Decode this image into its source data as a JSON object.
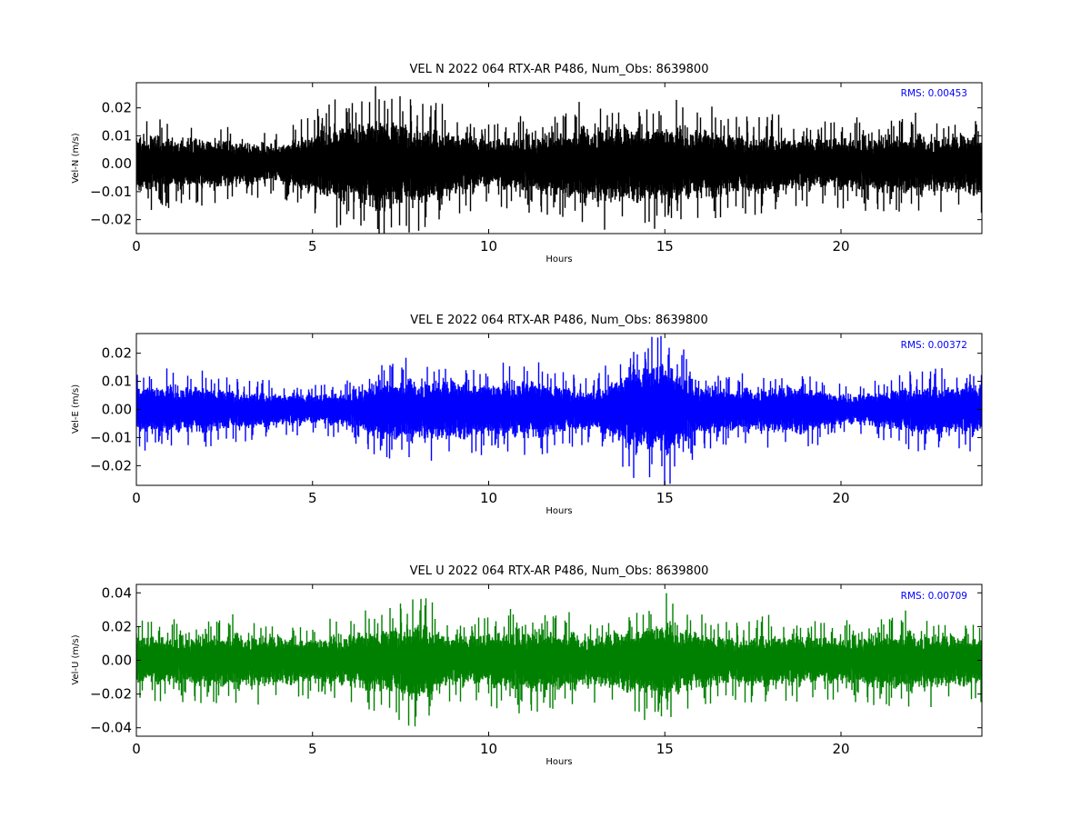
{
  "chart_data": [
    {
      "type": "line",
      "title": "VEL N 2022 064 RTX-AR  P486, Num_Obs: 8639800",
      "xlabel": "Hours",
      "ylabel": "Vel-N (m/s)",
      "xlim": [
        0,
        24
      ],
      "ylim": [
        -0.025,
        0.029
      ],
      "x_ticks": [
        0,
        5,
        10,
        15,
        20
      ],
      "y_ticks": [
        -0.02,
        -0.01,
        0.0,
        0.01,
        0.02
      ],
      "y_tick_labels": [
        "−0.02",
        "−0.01",
        "0.00",
        "0.01",
        "0.02"
      ],
      "color": "#000000",
      "annotation": "RMS:  0.00453",
      "annotation_color": "#0000ff",
      "series": [
        {
          "x": [
            0,
            1,
            2,
            3,
            4,
            5,
            6,
            7,
            8,
            9,
            10,
            11,
            12,
            13,
            14,
            15,
            16,
            17,
            18,
            19,
            20,
            21,
            22,
            23,
            24
          ],
          "envelope": [
            0.015,
            0.014,
            0.013,
            0.012,
            0.01,
            0.017,
            0.022,
            0.025,
            0.021,
            0.018,
            0.013,
            0.015,
            0.017,
            0.021,
            0.02,
            0.021,
            0.019,
            0.016,
            0.016,
            0.014,
            0.014,
            0.015,
            0.016,
            0.015,
            0.017
          ]
        }
      ]
    },
    {
      "type": "line",
      "title": "VEL E 2022 064 RTX-AR  P486, Num_Obs: 8639800",
      "xlabel": "Hours",
      "ylabel": "Vel-E (m/s)",
      "xlim": [
        0,
        24
      ],
      "ylim": [
        -0.027,
        0.027
      ],
      "x_ticks": [
        0,
        5,
        10,
        15,
        20
      ],
      "y_ticks": [
        -0.02,
        -0.01,
        0.0,
        0.01,
        0.02
      ],
      "y_tick_labels": [
        "−0.02",
        "−0.01",
        "0.00",
        "0.01",
        "0.02"
      ],
      "color": "#0000ff",
      "annotation": "RMS:  0.00372",
      "annotation_color": "#0000ff",
      "series": [
        {
          "x": [
            0,
            1,
            2,
            3,
            4,
            5,
            6,
            7,
            8,
            9,
            10,
            11,
            12,
            13,
            14,
            15,
            16,
            17,
            18,
            19,
            20,
            21,
            22,
            23,
            24
          ],
          "envelope": [
            0.013,
            0.013,
            0.012,
            0.01,
            0.009,
            0.008,
            0.009,
            0.016,
            0.016,
            0.016,
            0.014,
            0.016,
            0.013,
            0.01,
            0.022,
            0.025,
            0.013,
            0.011,
            0.012,
            0.013,
            0.008,
            0.009,
            0.013,
            0.013,
            0.014
          ]
        }
      ]
    },
    {
      "type": "line",
      "title": "VEL U 2022 064 RTX-AR  P486, Num_Obs: 8639800",
      "xlabel": "Hours",
      "ylabel": "Vel-U (m/s)",
      "xlim": [
        0,
        24
      ],
      "ylim": [
        -0.045,
        0.045
      ],
      "x_ticks": [
        0,
        5,
        10,
        15,
        20
      ],
      "y_ticks": [
        -0.04,
        -0.02,
        0.0,
        0.02,
        0.04
      ],
      "y_tick_labels": [
        "−0.04",
        "−0.02",
        "0.00",
        "0.02",
        "0.04"
      ],
      "color": "#008000",
      "annotation": "RMS:  0.00709",
      "annotation_color": "#0000ff",
      "series": [
        {
          "x": [
            0,
            1,
            2,
            3,
            4,
            5,
            6,
            7,
            8,
            9,
            10,
            11,
            12,
            13,
            14,
            15,
            16,
            17,
            18,
            19,
            20,
            21,
            22,
            23,
            24
          ],
          "envelope": [
            0.022,
            0.021,
            0.023,
            0.024,
            0.022,
            0.02,
            0.024,
            0.028,
            0.036,
            0.022,
            0.024,
            0.028,
            0.026,
            0.022,
            0.028,
            0.036,
            0.024,
            0.021,
            0.024,
            0.022,
            0.02,
            0.024,
            0.026,
            0.023,
            0.022
          ]
        }
      ]
    }
  ]
}
